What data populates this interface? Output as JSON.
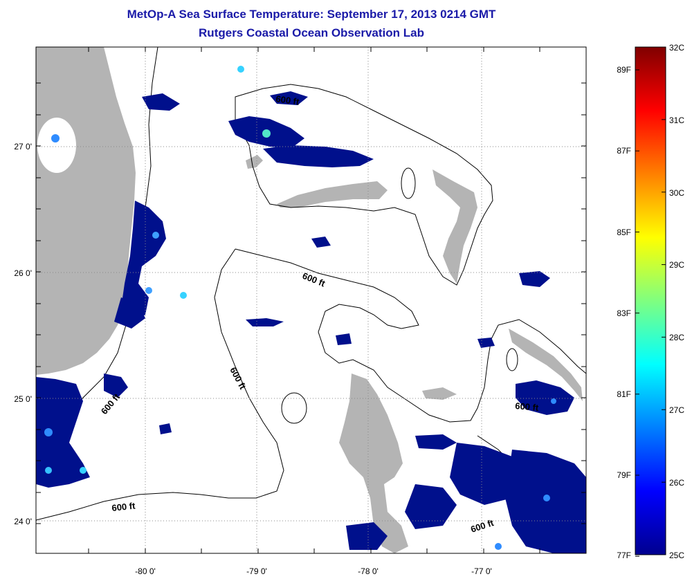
{
  "title": {
    "line1": "MetOp-A Sea Surface Temperature:  September 17, 2013 0214 GMT",
    "line2": "Rutgers Coastal Ocean Observation Lab"
  },
  "map": {
    "lon_labels": [
      "-80 0'",
      "-79 0'",
      "-78 0'",
      "-77 0'"
    ],
    "lat_labels": [
      "27 0'",
      "26 0'",
      "25 0'",
      "24 0'"
    ],
    "contour_labels": [
      "600 ft",
      "600 ft",
      "600 ft",
      "600 ft",
      "600 ft",
      "600 ft",
      "600 ft"
    ],
    "colors": {
      "land": "#b4b4b4",
      "cloud_free_water": "#ffffff",
      "cold_pixels": "#00108c",
      "grid": "#888888"
    }
  },
  "colorbar": {
    "fahrenheit_labels": [
      "89F",
      "87F",
      "85F",
      "83F",
      "81F",
      "79F",
      "77F"
    ],
    "celsius_labels": [
      "32C",
      "31C",
      "30C",
      "29C",
      "28C",
      "27C",
      "26C",
      "25C"
    ],
    "range_c": [
      25,
      32
    ],
    "colormap": "jet"
  }
}
